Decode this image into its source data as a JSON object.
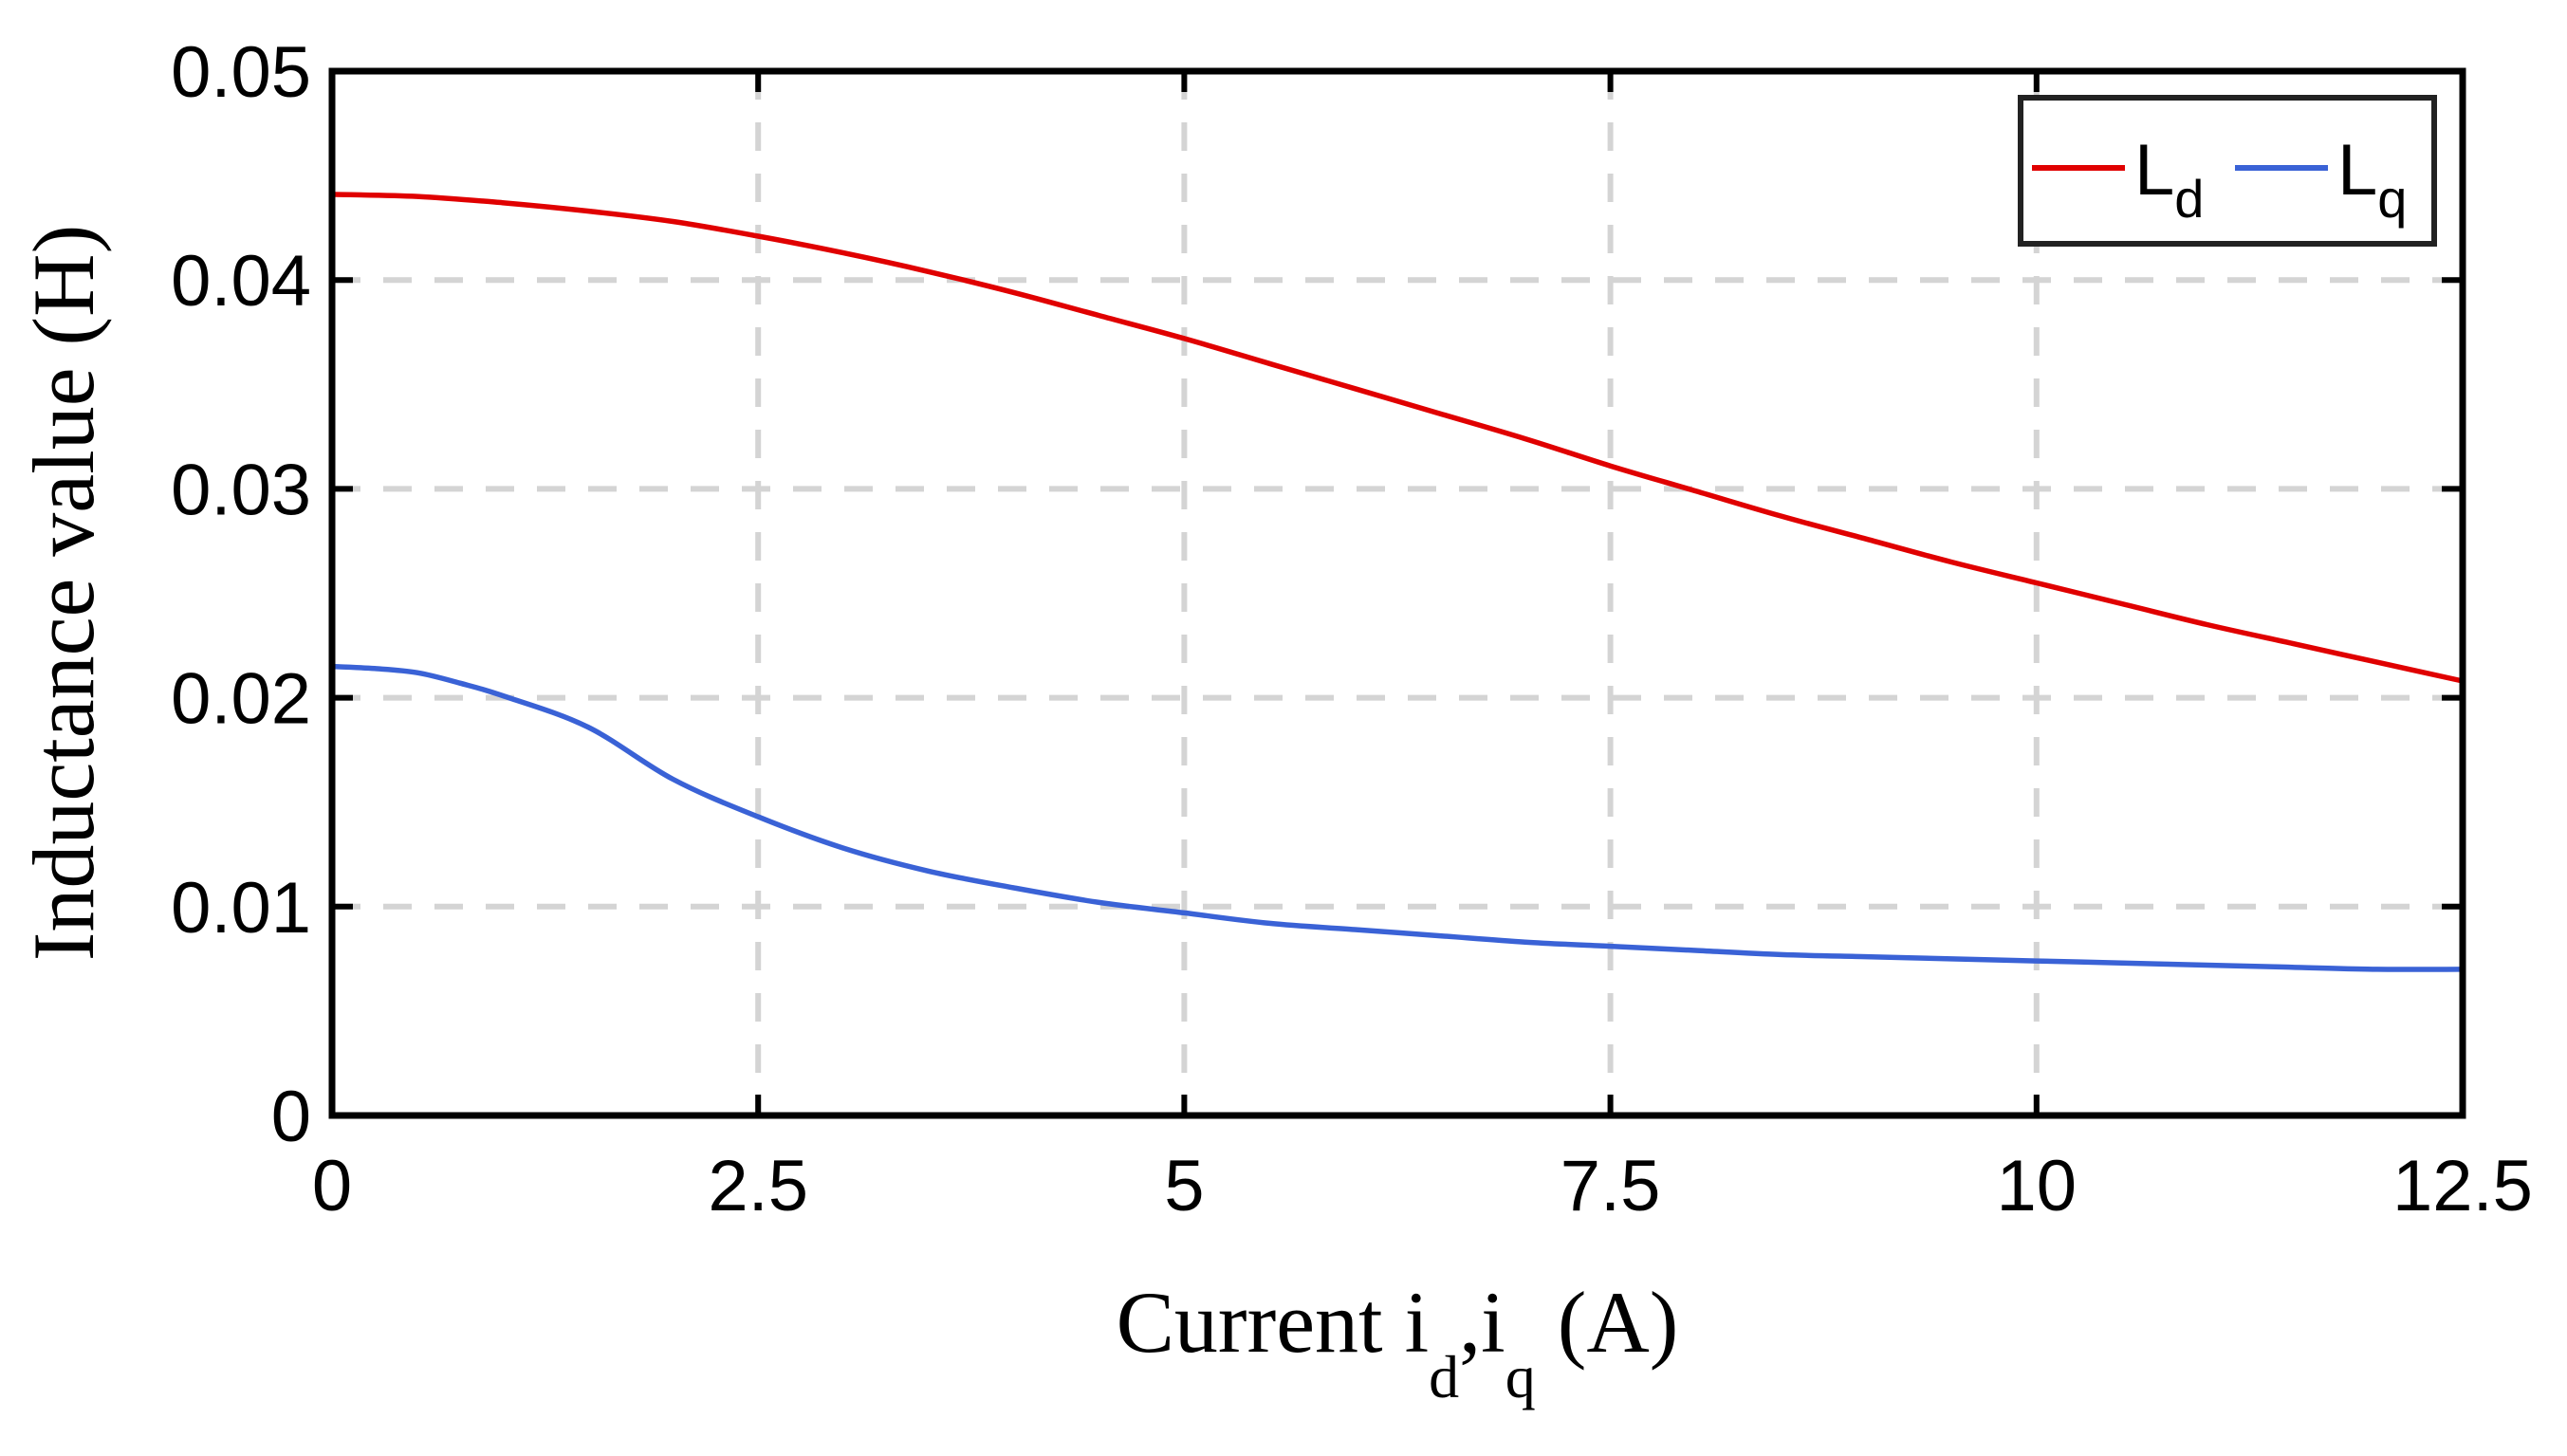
{
  "chart_data": {
    "type": "line",
    "xlabel": {
      "main": "Current i",
      "sub1": "d",
      "sep": ",i",
      "sub2": "q",
      "tail": " (A)"
    },
    "ylabel": "Inductance value (H)",
    "xlim": [
      0,
      12.5
    ],
    "ylim": [
      0,
      0.05
    ],
    "x_ticks": [
      0,
      2.5,
      5,
      7.5,
      10,
      12.5
    ],
    "x_tick_labels": [
      "0",
      "2.5",
      "5",
      "7.5",
      "10",
      "12.5"
    ],
    "y_ticks": [
      0,
      0.01,
      0.02,
      0.03,
      0.04,
      0.05
    ],
    "y_tick_labels": [
      "0",
      "0.01",
      "0.02",
      "0.03",
      "0.04",
      "0.05"
    ],
    "grid": true,
    "legend_position": "top-right",
    "series": [
      {
        "name": "Ld",
        "label_main": "L",
        "label_sub": "d",
        "color": "#e00000",
        "x": [
          0,
          0.5,
          1,
          1.5,
          2,
          2.5,
          3,
          3.5,
          4,
          4.5,
          5,
          5.5,
          6,
          6.5,
          7,
          7.5,
          8,
          8.5,
          9,
          9.5,
          10,
          10.5,
          11,
          11.5,
          12,
          12.5
        ],
        "y": [
          0.0441,
          0.044,
          0.0437,
          0.0433,
          0.0428,
          0.0421,
          0.0413,
          0.0404,
          0.0394,
          0.0383,
          0.0372,
          0.036,
          0.0348,
          0.0336,
          0.0324,
          0.0311,
          0.0299,
          0.0287,
          0.0276,
          0.0265,
          0.0255,
          0.0245,
          0.0235,
          0.0226,
          0.0217,
          0.0208
        ]
      },
      {
        "name": "Lq",
        "label_main": "L",
        "label_sub": "q",
        "color": "#3a62d6",
        "x": [
          0,
          0.25,
          0.5,
          0.75,
          1,
          1.5,
          2,
          2.5,
          3,
          3.5,
          4,
          4.5,
          5,
          5.5,
          6,
          6.5,
          7,
          7.5,
          8,
          8.5,
          9,
          9.5,
          10,
          10.5,
          11,
          11.5,
          12,
          12.5
        ],
        "y": [
          0.0215,
          0.0214,
          0.0212,
          0.0207,
          0.0201,
          0.0186,
          0.0161,
          0.0143,
          0.0128,
          0.0117,
          0.0109,
          0.0102,
          0.0097,
          0.0092,
          0.0089,
          0.0086,
          0.0083,
          0.0081,
          0.0079,
          0.0077,
          0.0076,
          0.0075,
          0.0074,
          0.0073,
          0.0072,
          0.0071,
          0.007,
          0.007
        ]
      }
    ]
  }
}
